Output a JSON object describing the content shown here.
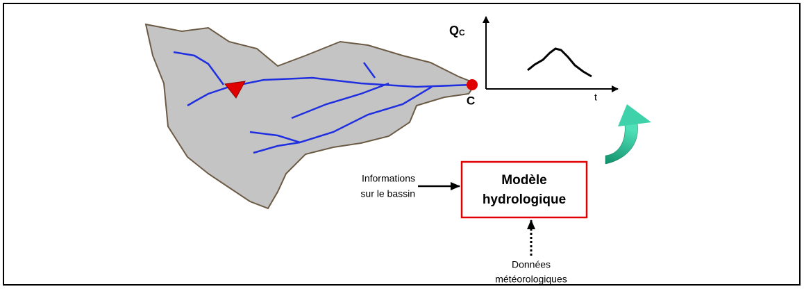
{
  "basin": {
    "outlet_label": "C"
  },
  "hydrograph": {
    "y_label": "Q",
    "y_label_sub": "C",
    "x_label": "t"
  },
  "model": {
    "label_lines": [
      "Modèle",
      "hydrologique"
    ]
  },
  "inputs": {
    "basin_info": [
      "Informations",
      "sur le bassin"
    ],
    "meteo": [
      "Données",
      "météorologiques"
    ]
  }
}
